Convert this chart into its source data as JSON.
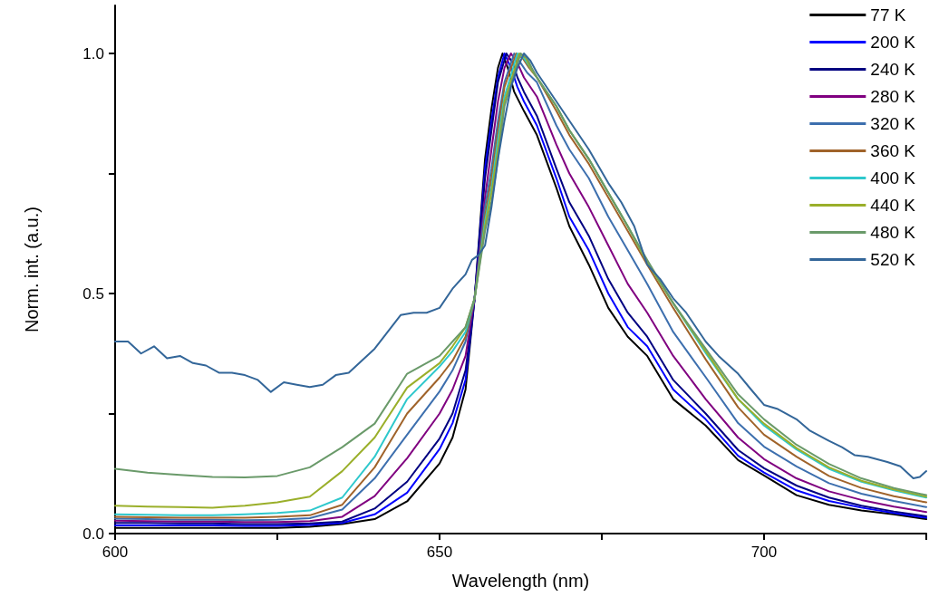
{
  "chart_data": {
    "type": "line",
    "xlabel": "Wavelength (nm)",
    "ylabel": "Norm. int. (a.u.)",
    "xlim": [
      600,
      725
    ],
    "ylim": [
      0,
      1.1
    ],
    "xticks": [
      600,
      {
        "value": 625,
        "label": null
      },
      650,
      {
        "value": 675,
        "label": null
      },
      700,
      {
        "value": 725,
        "label": null
      }
    ],
    "yticks": [
      {
        "value": 0,
        "label": "0.0"
      },
      {
        "value": 0.25,
        "label": null
      },
      {
        "value": 0.5,
        "label": "0.5"
      },
      {
        "value": 0.75,
        "label": null
      },
      {
        "value": 1,
        "label": "1.0"
      }
    ],
    "grid": false,
    "legend": "top right",
    "marker": "none",
    "line_style": "solid",
    "series": [
      {
        "name": "77 K",
        "color": "#000000",
        "x": [
          600,
          605,
          610,
          615,
          620,
          625,
          630,
          635,
          640,
          645,
          650,
          652,
          654,
          655.4,
          657,
          658,
          659,
          659.7,
          660.5,
          661.5,
          663,
          665,
          668,
          670,
          673,
          676,
          679,
          682,
          686,
          691,
          696,
          700,
          705,
          710,
          715,
          720,
          725
        ],
        "values": [
          0.012,
          0.012,
          0.012,
          0.012,
          0.012,
          0.012,
          0.014,
          0.02,
          0.03,
          0.067,
          0.146,
          0.2,
          0.3,
          0.49,
          0.78,
          0.885,
          0.97,
          1.0,
          0.97,
          0.92,
          0.88,
          0.83,
          0.72,
          0.64,
          0.56,
          0.47,
          0.41,
          0.37,
          0.28,
          0.225,
          0.153,
          0.121,
          0.08,
          0.06,
          0.048,
          0.04,
          0.03
        ]
      },
      {
        "name": "200 K",
        "color": "#0000ff",
        "x": [
          600,
          605,
          610,
          615,
          620,
          625,
          630,
          635,
          640,
          645,
          650,
          652,
          654,
          655.4,
          657,
          658,
          659,
          660,
          661,
          662,
          663,
          665,
          668,
          670,
          673,
          676,
          679,
          682,
          686,
          691,
          696,
          700,
          705,
          710,
          715,
          720,
          725
        ],
        "values": [
          0.017,
          0.017,
          0.017,
          0.017,
          0.016,
          0.016,
          0.018,
          0.022,
          0.04,
          0.085,
          0.176,
          0.23,
          0.32,
          0.49,
          0.76,
          0.86,
          0.95,
          1.0,
          0.97,
          0.93,
          0.9,
          0.85,
          0.74,
          0.66,
          0.59,
          0.5,
          0.43,
          0.39,
          0.3,
          0.238,
          0.162,
          0.127,
          0.09,
          0.068,
          0.054,
          0.043,
          0.033
        ]
      },
      {
        "name": "240 K",
        "color": "#000080",
        "x": [
          600,
          605,
          610,
          615,
          620,
          625,
          630,
          635,
          640,
          645,
          650,
          652,
          654,
          655.4,
          657,
          658,
          659,
          660.3,
          661.3,
          662,
          663,
          665,
          668,
          670,
          673,
          676,
          679,
          682,
          686,
          691,
          696,
          700,
          705,
          710,
          715,
          720,
          725
        ],
        "values": [
          0.022,
          0.022,
          0.021,
          0.021,
          0.02,
          0.02,
          0.021,
          0.025,
          0.052,
          0.108,
          0.198,
          0.25,
          0.34,
          0.49,
          0.74,
          0.84,
          0.94,
          1.0,
          0.98,
          0.95,
          0.92,
          0.87,
          0.76,
          0.69,
          0.62,
          0.53,
          0.46,
          0.41,
          0.32,
          0.25,
          0.174,
          0.136,
          0.1,
          0.075,
          0.058,
          0.046,
          0.036
        ]
      },
      {
        "name": "280 K",
        "color": "#800080",
        "x": [
          600,
          605,
          610,
          615,
          620,
          625,
          630,
          635,
          640,
          645,
          650,
          652,
          654,
          655.4,
          657,
          658,
          659,
          660,
          661,
          662,
          663,
          665,
          668,
          670,
          673,
          676,
          679,
          682,
          686,
          691,
          696,
          700,
          705,
          710,
          715,
          720,
          725
        ],
        "values": [
          0.027,
          0.026,
          0.025,
          0.025,
          0.024,
          0.024,
          0.026,
          0.035,
          0.078,
          0.157,
          0.25,
          0.3,
          0.37,
          0.49,
          0.7,
          0.8,
          0.9,
          0.97,
          1.0,
          0.98,
          0.95,
          0.91,
          0.81,
          0.75,
          0.68,
          0.6,
          0.52,
          0.46,
          0.37,
          0.28,
          0.2,
          0.155,
          0.115,
          0.088,
          0.07,
          0.056,
          0.045
        ]
      },
      {
        "name": "320 K",
        "color": "#3d6fae",
        "x": [
          600,
          605,
          610,
          615,
          620,
          625,
          630,
          635,
          640,
          645,
          650,
          652,
          654,
          655.4,
          657,
          658,
          659,
          660,
          661.5,
          662.5,
          663.5,
          665,
          668,
          670,
          673,
          676,
          679,
          682,
          686,
          691,
          696,
          700,
          705,
          710,
          715,
          720,
          725
        ],
        "values": [
          0.031,
          0.03,
          0.029,
          0.029,
          0.028,
          0.029,
          0.032,
          0.05,
          0.115,
          0.206,
          0.296,
          0.34,
          0.4,
          0.49,
          0.68,
          0.76,
          0.86,
          0.94,
          1.0,
          0.98,
          0.96,
          0.94,
          0.85,
          0.8,
          0.74,
          0.66,
          0.59,
          0.52,
          0.42,
          0.326,
          0.23,
          0.181,
          0.14,
          0.105,
          0.083,
          0.068,
          0.055
        ]
      },
      {
        "name": "360 K",
        "color": "#a0632a",
        "x": [
          600,
          605,
          610,
          615,
          620,
          625,
          630,
          635,
          640,
          645,
          650,
          652,
          654,
          655.4,
          657,
          658,
          659,
          660,
          661.8,
          662.8,
          663.8,
          665,
          668,
          670,
          673,
          676,
          679,
          682,
          686,
          691,
          696,
          700,
          705,
          710,
          715,
          720,
          725
        ],
        "values": [
          0.035,
          0.034,
          0.033,
          0.033,
          0.033,
          0.035,
          0.038,
          0.06,
          0.138,
          0.25,
          0.325,
          0.36,
          0.41,
          0.49,
          0.66,
          0.74,
          0.84,
          0.93,
          1.0,
          0.99,
          0.97,
          0.95,
          0.88,
          0.83,
          0.77,
          0.7,
          0.63,
          0.56,
          0.47,
          0.363,
          0.263,
          0.206,
          0.16,
          0.12,
          0.095,
          0.078,
          0.065
        ]
      },
      {
        "name": "400 K",
        "color": "#2ec8cc",
        "x": [
          600,
          605,
          610,
          615,
          620,
          625,
          630,
          635,
          640,
          645,
          650,
          652,
          654,
          655.4,
          657,
          658,
          659,
          660,
          662,
          663,
          664,
          665,
          668,
          670,
          673,
          676,
          679,
          682,
          686,
          691,
          696,
          700,
          705,
          710,
          715,
          720,
          725
        ],
        "values": [
          0.04,
          0.039,
          0.038,
          0.038,
          0.04,
          0.043,
          0.048,
          0.075,
          0.16,
          0.28,
          0.348,
          0.38,
          0.42,
          0.49,
          0.65,
          0.72,
          0.82,
          0.91,
          1.0,
          0.99,
          0.97,
          0.95,
          0.89,
          0.84,
          0.78,
          0.71,
          0.64,
          0.565,
          0.48,
          0.376,
          0.28,
          0.225,
          0.175,
          0.135,
          0.108,
          0.09,
          0.075
        ]
      },
      {
        "name": "440 K",
        "color": "#9aaf2a",
        "x": [
          600,
          605,
          610,
          615,
          620,
          625,
          630,
          635,
          640,
          645,
          650,
          652,
          654,
          655.4,
          657,
          658,
          659,
          660,
          662.3,
          663.3,
          664,
          665,
          668,
          670,
          673,
          676,
          679,
          682,
          686,
          691,
          696,
          700,
          705,
          710,
          715,
          720,
          725
        ],
        "values": [
          0.058,
          0.056,
          0.055,
          0.054,
          0.058,
          0.065,
          0.077,
          0.13,
          0.2,
          0.304,
          0.355,
          0.39,
          0.43,
          0.49,
          0.64,
          0.71,
          0.8,
          0.9,
          1.0,
          0.99,
          0.97,
          0.95,
          0.89,
          0.84,
          0.78,
          0.71,
          0.64,
          0.565,
          0.48,
          0.38,
          0.28,
          0.229,
          0.178,
          0.138,
          0.11,
          0.092,
          0.077
        ]
      },
      {
        "name": "480 K",
        "color": "#6a9a6a",
        "x": [
          600,
          605,
          610,
          615,
          620,
          625,
          630,
          635,
          640,
          645,
          650,
          652,
          654,
          655.4,
          657,
          658,
          659,
          660,
          662.5,
          663.5,
          664.2,
          665,
          668,
          670,
          673,
          676,
          679,
          682,
          686,
          691,
          696,
          700,
          705,
          710,
          715,
          720,
          725
        ],
        "values": [
          0.135,
          0.127,
          0.122,
          0.118,
          0.117,
          0.12,
          0.138,
          0.18,
          0.229,
          0.333,
          0.37,
          0.4,
          0.43,
          0.49,
          0.63,
          0.69,
          0.78,
          0.89,
          1.0,
          0.99,
          0.97,
          0.95,
          0.89,
          0.84,
          0.78,
          0.71,
          0.64,
          0.57,
          0.48,
          0.385,
          0.29,
          0.238,
          0.185,
          0.145,
          0.115,
          0.095,
          0.08
        ]
      },
      {
        "name": "520 K",
        "color": "#336699",
        "x": [
          600,
          602,
          604,
          606,
          608,
          610,
          612,
          614,
          616,
          618,
          620,
          622,
          624,
          626,
          628,
          630,
          632,
          634,
          636,
          638,
          640,
          642,
          644,
          646,
          648,
          650,
          652,
          654,
          655,
          656,
          657,
          658,
          659,
          660,
          661,
          662,
          663,
          664,
          665,
          668,
          670,
          673,
          676,
          678,
          680,
          682,
          684,
          686,
          688,
          691,
          693,
          696,
          698,
          700,
          702,
          705,
          707,
          710,
          712,
          714,
          716,
          719,
          721,
          723,
          724,
          725
        ],
        "values": [
          0.4,
          0.4,
          0.375,
          0.39,
          0.365,
          0.37,
          0.355,
          0.35,
          0.335,
          0.335,
          0.33,
          0.32,
          0.295,
          0.315,
          0.31,
          0.305,
          0.31,
          0.33,
          0.335,
          0.36,
          0.385,
          0.42,
          0.455,
          0.46,
          0.46,
          0.47,
          0.51,
          0.54,
          0.57,
          0.58,
          0.6,
          0.68,
          0.78,
          0.86,
          0.93,
          0.97,
          1.0,
          0.985,
          0.96,
          0.9,
          0.86,
          0.8,
          0.73,
          0.69,
          0.64,
          0.56,
          0.53,
          0.49,
          0.46,
          0.4,
          0.37,
          0.333,
          0.3,
          0.268,
          0.26,
          0.238,
          0.215,
          0.193,
          0.18,
          0.163,
          0.16,
          0.149,
          0.14,
          0.115,
          0.118,
          0.13
        ]
      }
    ]
  }
}
